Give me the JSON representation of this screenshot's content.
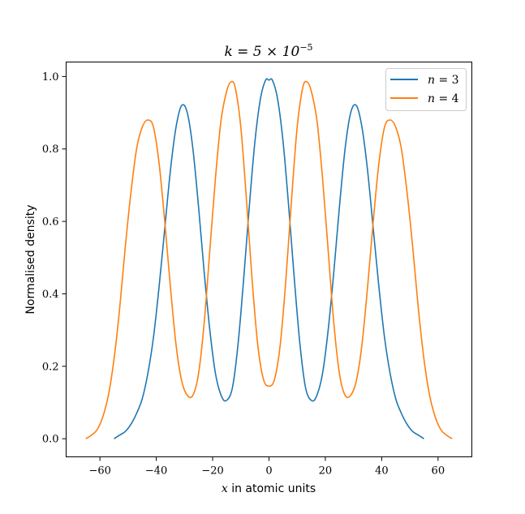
{
  "chart_data": {
    "type": "line",
    "title": "k = 5 × 10",
    "title_exponent": "−5",
    "xlabel_var": "x",
    "xlabel_text": " in atomic units",
    "ylabel": "Normalised density",
    "xlim": [
      -72,
      72
    ],
    "ylim": [
      -0.05,
      1.04
    ],
    "x_ticks": [
      -60,
      -40,
      -20,
      0,
      20,
      40,
      60
    ],
    "x_tick_labels": [
      "−60",
      "−40",
      "−20",
      "0",
      "20",
      "40",
      "60"
    ],
    "y_ticks": [
      0.0,
      0.2,
      0.4,
      0.6,
      0.8,
      1.0
    ],
    "y_tick_labels": [
      "0.0",
      "0.2",
      "0.4",
      "0.6",
      "0.8",
      "1.0"
    ],
    "grid": false,
    "legend_position": "top-right",
    "series": [
      {
        "name": "n = 3",
        "legend_var": "n",
        "legend_value": " = 3",
        "color": "#1f77b4",
        "points": [
          [
            -55,
            0.0
          ],
          [
            -53,
            0.01
          ],
          [
            -51,
            0.02
          ],
          [
            -49,
            0.04
          ],
          [
            -47,
            0.07
          ],
          [
            -45,
            0.11
          ],
          [
            -43,
            0.18
          ],
          [
            -41,
            0.28
          ],
          [
            -39,
            0.42
          ],
          [
            -37,
            0.58
          ],
          [
            -35,
            0.74
          ],
          [
            -33,
            0.86
          ],
          [
            -31,
            0.92
          ],
          [
            -29,
            0.9
          ],
          [
            -27,
            0.8
          ],
          [
            -25,
            0.64
          ],
          [
            -23,
            0.46
          ],
          [
            -21,
            0.3
          ],
          [
            -19,
            0.18
          ],
          [
            -17,
            0.12
          ],
          [
            -15.2,
            0.105
          ],
          [
            -13,
            0.14
          ],
          [
            -11,
            0.26
          ],
          [
            -9,
            0.44
          ],
          [
            -7,
            0.64
          ],
          [
            -5,
            0.82
          ],
          [
            -3,
            0.94
          ],
          [
            -1.2,
            0.99
          ],
          [
            0,
            0.99
          ],
          [
            1.2,
            0.99
          ],
          [
            3,
            0.94
          ],
          [
            5,
            0.82
          ],
          [
            7,
            0.64
          ],
          [
            9,
            0.44
          ],
          [
            11,
            0.26
          ],
          [
            13,
            0.14
          ],
          [
            15.2,
            0.105
          ],
          [
            17,
            0.12
          ],
          [
            19,
            0.18
          ],
          [
            21,
            0.3
          ],
          [
            23,
            0.46
          ],
          [
            25,
            0.64
          ],
          [
            27,
            0.8
          ],
          [
            29,
            0.9
          ],
          [
            31,
            0.92
          ],
          [
            33,
            0.86
          ],
          [
            35,
            0.74
          ],
          [
            37,
            0.58
          ],
          [
            39,
            0.42
          ],
          [
            41,
            0.28
          ],
          [
            43,
            0.18
          ],
          [
            45,
            0.11
          ],
          [
            47,
            0.07
          ],
          [
            49,
            0.04
          ],
          [
            51,
            0.02
          ],
          [
            53,
            0.01
          ],
          [
            55,
            0.0
          ]
        ]
      },
      {
        "name": "n = 4",
        "legend_var": "n",
        "legend_value": " = 4",
        "color": "#ff7f0e",
        "points": [
          [
            -65,
            0.0
          ],
          [
            -63,
            0.01
          ],
          [
            -61,
            0.025
          ],
          [
            -59,
            0.06
          ],
          [
            -57,
            0.12
          ],
          [
            -55,
            0.22
          ],
          [
            -53,
            0.36
          ],
          [
            -51,
            0.53
          ],
          [
            -49,
            0.68
          ],
          [
            -47,
            0.8
          ],
          [
            -45,
            0.86
          ],
          [
            -43,
            0.88
          ],
          [
            -41,
            0.86
          ],
          [
            -39,
            0.76
          ],
          [
            -37,
            0.6
          ],
          [
            -35,
            0.42
          ],
          [
            -33,
            0.26
          ],
          [
            -31,
            0.16
          ],
          [
            -29,
            0.12
          ],
          [
            -27,
            0.12
          ],
          [
            -25,
            0.18
          ],
          [
            -23,
            0.32
          ],
          [
            -21,
            0.52
          ],
          [
            -19,
            0.72
          ],
          [
            -17,
            0.88
          ],
          [
            -15,
            0.96
          ],
          [
            -13.5,
            0.985
          ],
          [
            -12,
            0.97
          ],
          [
            -10,
            0.86
          ],
          [
            -8,
            0.66
          ],
          [
            -6,
            0.44
          ],
          [
            -4,
            0.26
          ],
          [
            -2,
            0.165
          ],
          [
            0,
            0.145
          ],
          [
            2,
            0.165
          ],
          [
            4,
            0.26
          ],
          [
            6,
            0.44
          ],
          [
            8,
            0.66
          ],
          [
            10,
            0.86
          ],
          [
            12,
            0.97
          ],
          [
            13.5,
            0.985
          ],
          [
            15,
            0.96
          ],
          [
            17,
            0.88
          ],
          [
            19,
            0.72
          ],
          [
            21,
            0.52
          ],
          [
            23,
            0.32
          ],
          [
            25,
            0.18
          ],
          [
            27,
            0.12
          ],
          [
            29,
            0.12
          ],
          [
            31,
            0.16
          ],
          [
            33,
            0.26
          ],
          [
            35,
            0.42
          ],
          [
            37,
            0.6
          ],
          [
            39,
            0.76
          ],
          [
            41,
            0.86
          ],
          [
            43,
            0.88
          ],
          [
            45,
            0.86
          ],
          [
            47,
            0.8
          ],
          [
            49,
            0.68
          ],
          [
            51,
            0.53
          ],
          [
            53,
            0.36
          ],
          [
            55,
            0.22
          ],
          [
            57,
            0.12
          ],
          [
            59,
            0.06
          ],
          [
            61,
            0.025
          ],
          [
            63,
            0.01
          ],
          [
            65,
            0.0
          ]
        ]
      }
    ]
  }
}
